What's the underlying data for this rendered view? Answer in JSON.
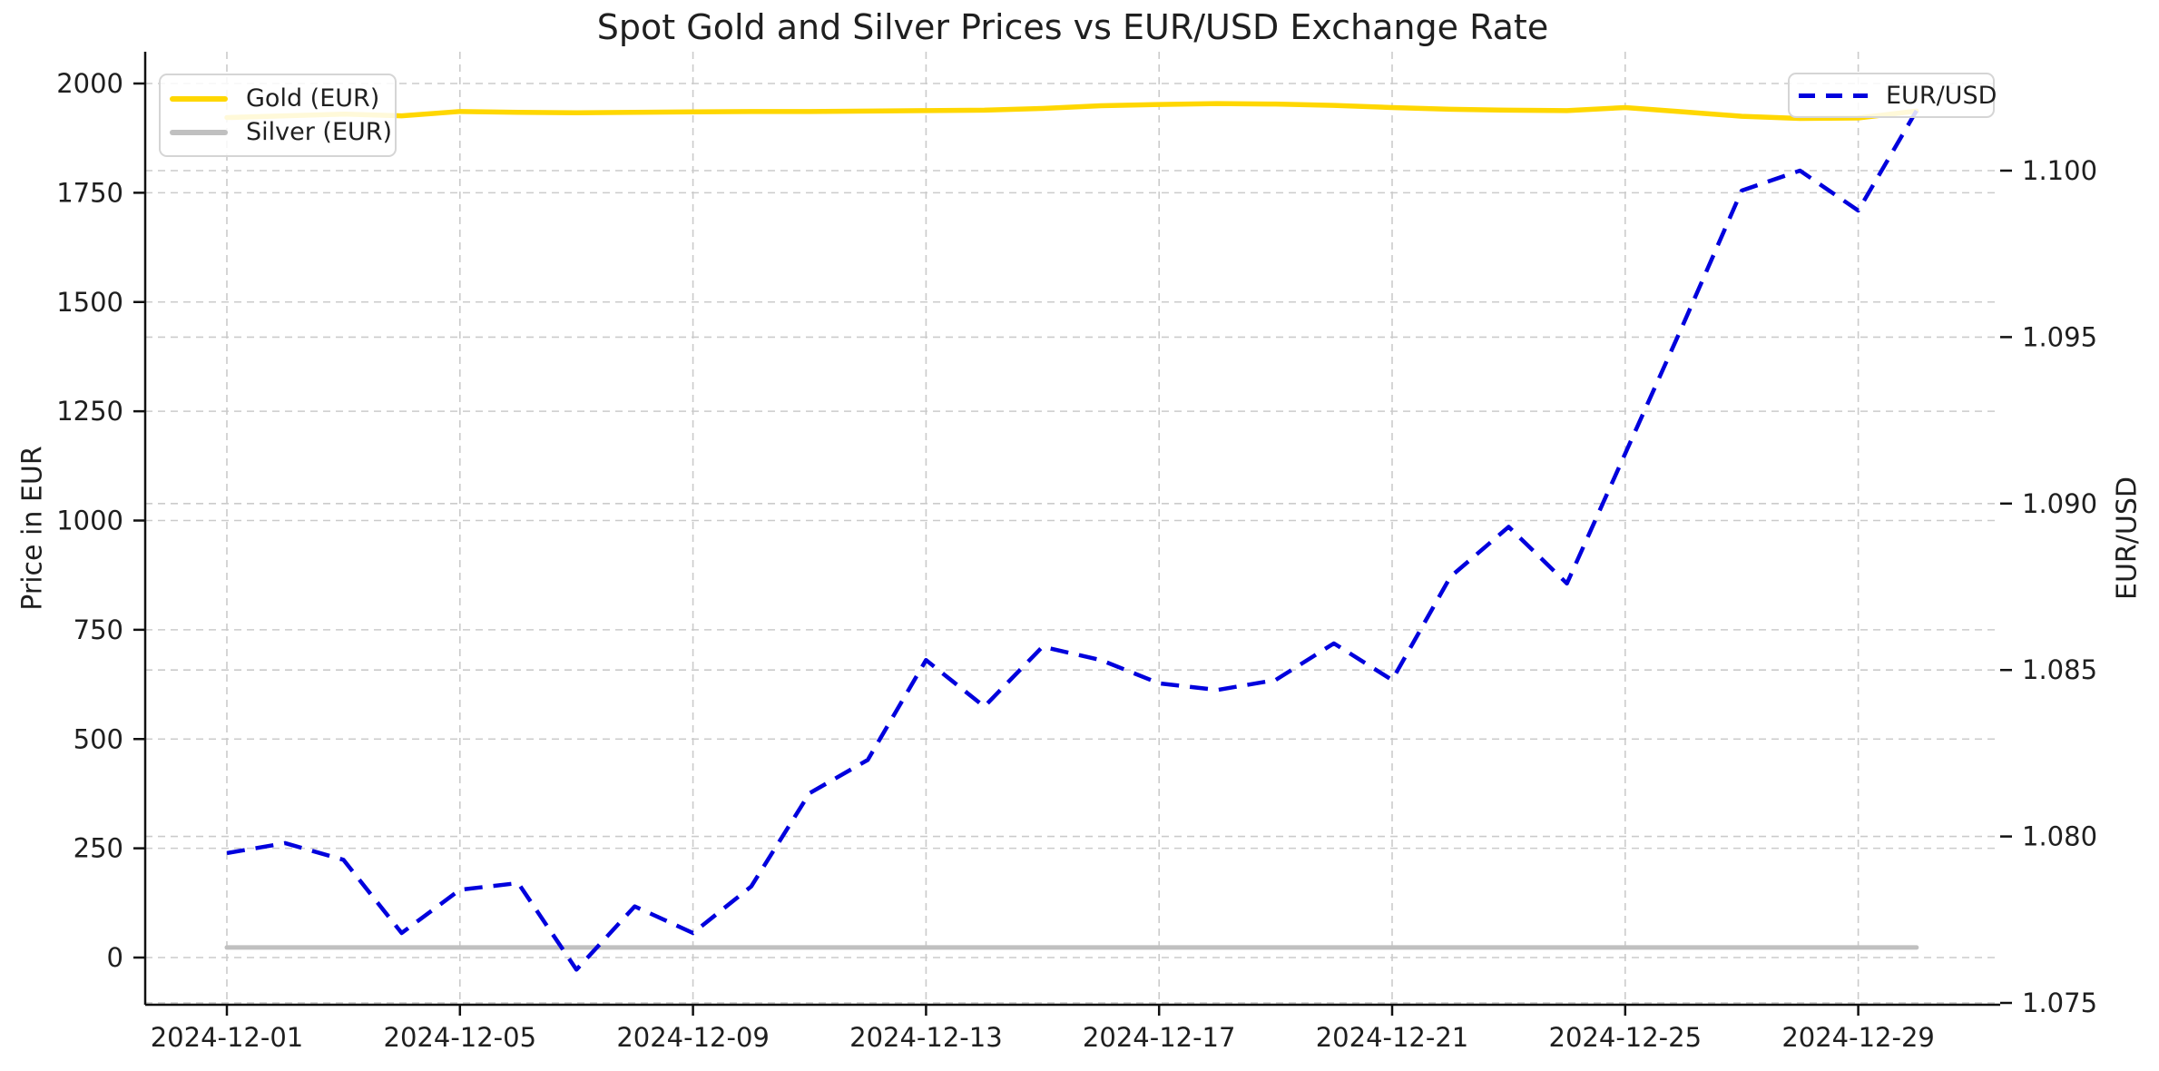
{
  "title": "Spot Gold and Silver Prices vs EUR/USD Exchange Rate",
  "left_axis": {
    "label": "Price in EUR",
    "ticks": [
      0,
      250,
      500,
      750,
      1000,
      1250,
      1500,
      1750,
      2000
    ]
  },
  "right_axis": {
    "label": "EUR/USD",
    "ticks": [
      "1.075",
      "1.080",
      "1.085",
      "1.090",
      "1.095",
      "1.100"
    ]
  },
  "x_axis": {
    "tick_labels": [
      "2024-12-01",
      "2024-12-05",
      "2024-12-09",
      "2024-12-13",
      "2024-12-17",
      "2024-12-21",
      "2024-12-25",
      "2024-12-29"
    ],
    "tick_indices": [
      0,
      4,
      8,
      12,
      16,
      20,
      24,
      28
    ]
  },
  "colors": {
    "gold": "#FFD700",
    "silver": "#C0C0C0",
    "eurusd": "#0000DD",
    "grid": "#cbcbcb",
    "spine": "#111111",
    "text": "#1f1f1f"
  },
  "chart_data": {
    "type": "line",
    "title": "Spot Gold and Silver Prices vs EUR/USD Exchange Rate",
    "xlabel": "",
    "ylabel_left": "Price in EUR",
    "ylabel_right": "EUR/USD",
    "grid": true,
    "legend_positions": {
      "gold_silver": "upper left",
      "eurusd": "upper right"
    },
    "ylim_left": [
      0,
      2000
    ],
    "ylim_right": [
      1.075,
      1.1
    ],
    "x": [
      "2024-12-01",
      "2024-12-02",
      "2024-12-03",
      "2024-12-04",
      "2024-12-05",
      "2024-12-06",
      "2024-12-07",
      "2024-12-08",
      "2024-12-09",
      "2024-12-10",
      "2024-12-11",
      "2024-12-12",
      "2024-12-13",
      "2024-12-14",
      "2024-12-15",
      "2024-12-16",
      "2024-12-17",
      "2024-12-18",
      "2024-12-19",
      "2024-12-20",
      "2024-12-21",
      "2024-12-22",
      "2024-12-23",
      "2024-12-24",
      "2024-12-25",
      "2024-12-26",
      "2024-12-27",
      "2024-12-28",
      "2024-12-29",
      "2024-12-30"
    ],
    "series": [
      {
        "name": "Gold (EUR)",
        "axis": "left",
        "style": "solid",
        "values": [
          1922,
          1926,
          1930,
          1926,
          1936,
          1934,
          1933,
          1934,
          1935,
          1936,
          1936,
          1937,
          1938,
          1939,
          1943,
          1949,
          1952,
          1954,
          1953,
          1950,
          1945,
          1941,
          1939,
          1938,
          1945,
          1935,
          1925,
          1920,
          1921,
          1937
        ]
      },
      {
        "name": "Silver (EUR)",
        "axis": "left",
        "style": "solid",
        "values": [
          23,
          23,
          23,
          23,
          23,
          23,
          23,
          23,
          23,
          23,
          23,
          23,
          23,
          23,
          23,
          23,
          23,
          23,
          23,
          23,
          23,
          23,
          23,
          23,
          23,
          23,
          23,
          23,
          23,
          23
        ]
      },
      {
        "name": "EUR/USD",
        "axis": "right",
        "style": "dashed",
        "values": [
          1.0795,
          1.0798,
          1.0793,
          1.0771,
          1.0784,
          1.0786,
          1.076,
          1.0779,
          1.0771,
          1.0785,
          1.0813,
          1.0823,
          1.0853,
          1.0839,
          1.0857,
          1.0853,
          1.0846,
          1.0844,
          1.0847,
          1.0858,
          1.0847,
          1.0878,
          1.0893,
          1.0876,
          1.0915,
          1.0954,
          1.0994,
          1.1,
          1.0988,
          1.1018
        ]
      }
    ]
  }
}
